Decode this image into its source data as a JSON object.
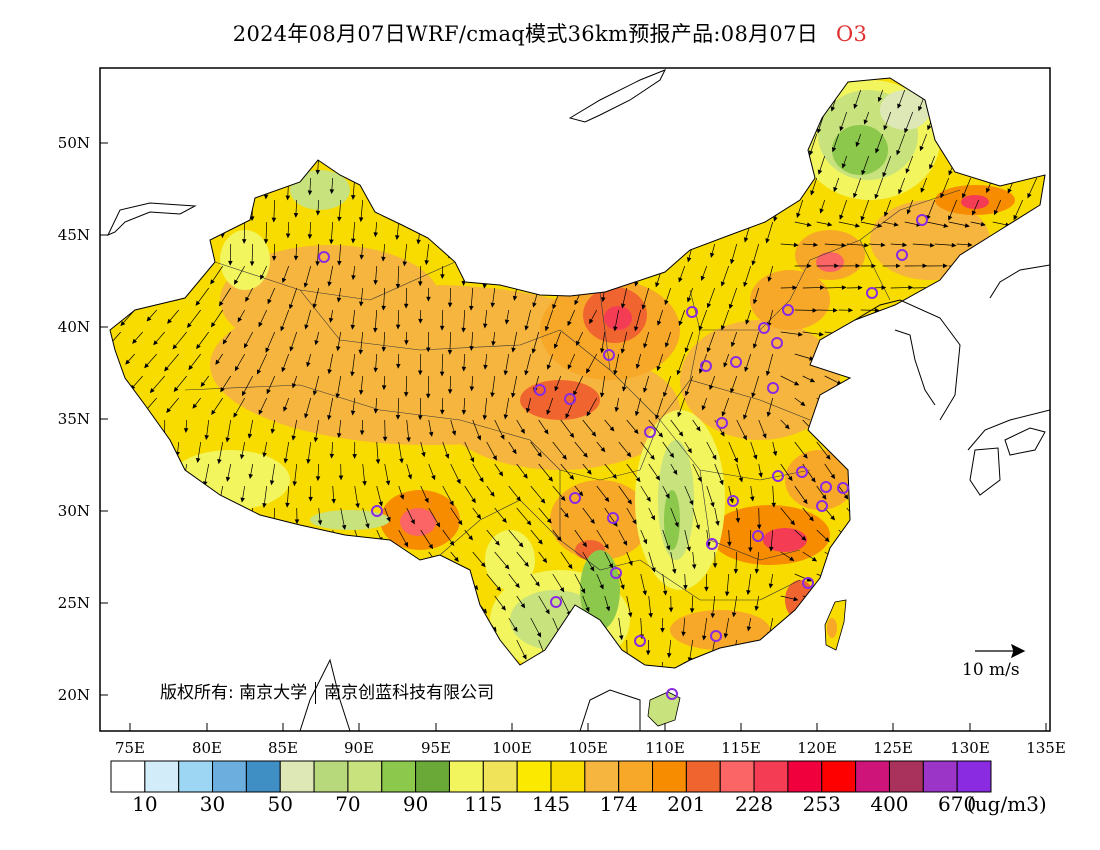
{
  "title": {
    "main": "2024年08月07日WRF/cmaq模式36km预报产品:08月07日",
    "pollutant": "O3",
    "pollutant_color": "#e03030"
  },
  "map": {
    "lat_labels": [
      "50N",
      "45N",
      "40N",
      "35N",
      "30N",
      "25N",
      "20N"
    ],
    "lon_labels": [
      "75E",
      "80E",
      "85E",
      "90E",
      "95E",
      "100E",
      "105E",
      "110E",
      "115E",
      "120E",
      "125E",
      "130E",
      "135E"
    ],
    "lon_range": [
      73,
      135
    ],
    "lat_range": [
      18,
      54
    ],
    "wind_reference": {
      "label": "10 m/s"
    },
    "copyright": {
      "left": "版权所有: 南京大学",
      "right": "南京创蓝科技有限公司"
    }
  },
  "legend": {
    "unit": "(ug/m3)",
    "labels": [
      "10",
      "30",
      "50",
      "70",
      "90",
      "115",
      "145",
      "174",
      "201",
      "228",
      "253",
      "400",
      "670"
    ],
    "colors": [
      "#ffffff",
      "#d2ecf9",
      "#9dd6f3",
      "#6caedd",
      "#3f8fc5",
      "#dde8b6",
      "#b8d87c",
      "#c8e27d",
      "#8cc84b",
      "#6aa838",
      "#f2f55e",
      "#f0e35a",
      "#fbea00",
      "#f8dc00",
      "#f6b53e",
      "#f8a828",
      "#f88c00",
      "#f06430",
      "#fb6565",
      "#f53c55",
      "#f0003c",
      "#ff0000",
      "#cf1479",
      "#a9325c",
      "#9b35c8",
      "#8a2be2"
    ]
  }
}
